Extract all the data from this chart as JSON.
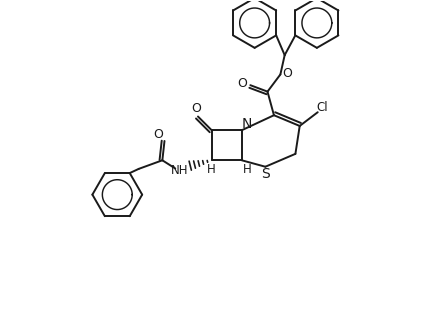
{
  "bg_color": "#ffffff",
  "line_color": "#1a1a1a",
  "line_width": 1.4,
  "font_size": 8.5,
  "fig_width": 4.32,
  "fig_height": 3.12,
  "dpi": 100,
  "xlim": [
    0,
    100
  ],
  "ylim": [
    0,
    72
  ]
}
